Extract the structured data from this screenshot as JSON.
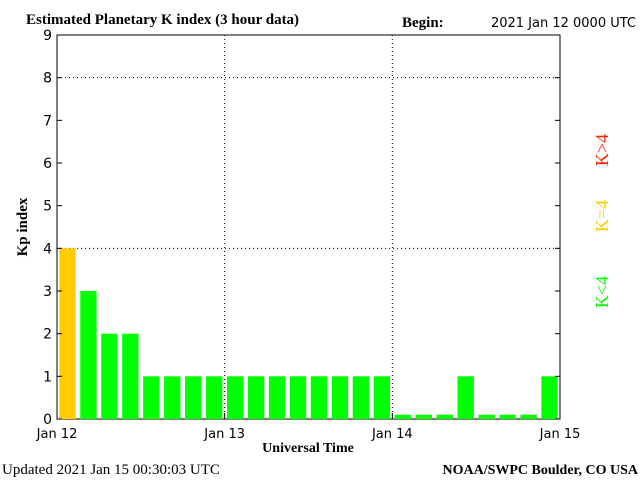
{
  "header": {
    "title": "Estimated Planetary K index (3 hour data)",
    "begin_label": "Begin:",
    "begin_value": "2021 Jan 12 0000 UTC"
  },
  "footer": {
    "updated": "Updated 2021 Jan 15 00:30:03 UTC",
    "source": "NOAA/SWPC Boulder, CO USA"
  },
  "legend": {
    "above": "K>4",
    "equal": "K=4",
    "below": "K<4"
  },
  "colors": {
    "below": "#00ff00",
    "equal": "#ffcc00",
    "above": "#ff2200",
    "axis": "#000000"
  },
  "chart_data": {
    "type": "bar",
    "xlabel": "Universal Time",
    "ylabel": "Kp index",
    "ylim": [
      0,
      9
    ],
    "yticks": [
      "0",
      "1",
      "2",
      "3",
      "4",
      "5",
      "6",
      "7",
      "8",
      "9"
    ],
    "xticks": [
      "Jan 12",
      "Jan 13",
      "Jan 14",
      "Jan 15"
    ],
    "grid": "dotted at Jan 13, Jan 14 and Kp 4, 8",
    "interval_hours": 3,
    "values": [
      4,
      3,
      2,
      2,
      1,
      1,
      1,
      1,
      1,
      1,
      1,
      1,
      1,
      1,
      1,
      1,
      0.1,
      0.1,
      0.1,
      1,
      0.1,
      0.1,
      0.1,
      1
    ]
  }
}
